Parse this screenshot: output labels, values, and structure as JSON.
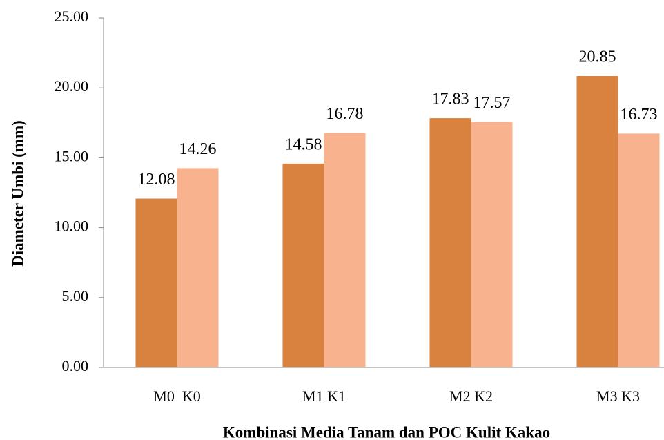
{
  "chart_data": {
    "type": "bar",
    "x_label": "Kombinasi Media Tanam dan POC Kulit Kakao",
    "y_label": "Diameter Umbi (mm)",
    "categories": [
      "M0  K0",
      "M1 K1",
      "M2 K2",
      "M3 K3"
    ],
    "series": [
      {
        "color": "#d9823f",
        "values": [
          12.08,
          14.58,
          17.83,
          20.85
        ]
      },
      {
        "color": "#f8b38e",
        "values": [
          14.26,
          16.78,
          17.57,
          16.73
        ]
      }
    ],
    "ylim": [
      0,
      25
    ],
    "yticks": [
      {
        "value": 0,
        "label": "0.00"
      },
      {
        "value": 5,
        "label": "5.00"
      },
      {
        "value": 10,
        "label": "10.00"
      },
      {
        "value": 15,
        "label": "15.00"
      },
      {
        "value": 20,
        "label": "20.00"
      },
      {
        "value": 25,
        "label": "25.00"
      }
    ],
    "grid": false
  }
}
